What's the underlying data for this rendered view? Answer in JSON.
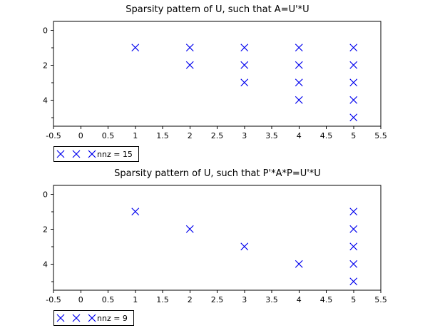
{
  "figure": {
    "background": "#ffffff",
    "axis_color": "#000000",
    "marker_color": "#0000ee"
  },
  "chart_data": [
    {
      "type": "scatter",
      "title": "Sparsity pattern of U, such that A=U'*U",
      "legend_label": "nnz = 15",
      "nnz": 15,
      "marker": "x-cross",
      "marker_color": "#0000ee",
      "axis_color": "#000000",
      "xlim": [
        -0.5,
        5.5
      ],
      "ylim": [
        -0.5,
        5.5
      ],
      "y_axis_inverted": true,
      "grid": false,
      "legend_position": "below-left",
      "x_ticks": [
        -0.5,
        0,
        0.5,
        1,
        1.5,
        2,
        2.5,
        3,
        3.5,
        4,
        4.5,
        5,
        5.5
      ],
      "x_tick_labels": [
        "-0.5",
        "0",
        "0.5",
        "1",
        "1.5",
        "2",
        "2.5",
        "3",
        "3.5",
        "4",
        "4.5",
        "5",
        "5.5"
      ],
      "y_major_ticks": [
        0,
        2,
        4
      ],
      "y_major_tick_labels": [
        "0",
        "2",
        "4"
      ],
      "y_minor_ticks": [
        1,
        3,
        5
      ],
      "points": [
        [
          1,
          1
        ],
        [
          2,
          1
        ],
        [
          2,
          2
        ],
        [
          3,
          1
        ],
        [
          3,
          2
        ],
        [
          3,
          3
        ],
        [
          4,
          1
        ],
        [
          4,
          2
        ],
        [
          4,
          3
        ],
        [
          4,
          4
        ],
        [
          5,
          1
        ],
        [
          5,
          2
        ],
        [
          5,
          3
        ],
        [
          5,
          4
        ],
        [
          5,
          5
        ]
      ]
    },
    {
      "type": "scatter",
      "title": "Sparsity pattern of U, such that P'*A*P=U'*U",
      "legend_label": "nnz = 9",
      "nnz": 9,
      "marker": "x-cross",
      "marker_color": "#0000ee",
      "axis_color": "#000000",
      "xlim": [
        -0.5,
        5.5
      ],
      "ylim": [
        -0.5,
        5.5
      ],
      "y_axis_inverted": true,
      "grid": false,
      "legend_position": "below-left",
      "x_ticks": [
        -0.5,
        0,
        0.5,
        1,
        1.5,
        2,
        2.5,
        3,
        3.5,
        4,
        4.5,
        5,
        5.5
      ],
      "x_tick_labels": [
        "-0.5",
        "0",
        "0.5",
        "1",
        "1.5",
        "2",
        "2.5",
        "3",
        "3.5",
        "4",
        "4.5",
        "5",
        "5.5"
      ],
      "y_major_ticks": [
        0,
        2,
        4
      ],
      "y_major_tick_labels": [
        "0",
        "2",
        "4"
      ],
      "y_minor_ticks": [
        1,
        3,
        5
      ],
      "points": [
        [
          1,
          1
        ],
        [
          2,
          2
        ],
        [
          3,
          3
        ],
        [
          4,
          4
        ],
        [
          5,
          1
        ],
        [
          5,
          2
        ],
        [
          5,
          3
        ],
        [
          5,
          4
        ],
        [
          5,
          5
        ]
      ]
    }
  ]
}
